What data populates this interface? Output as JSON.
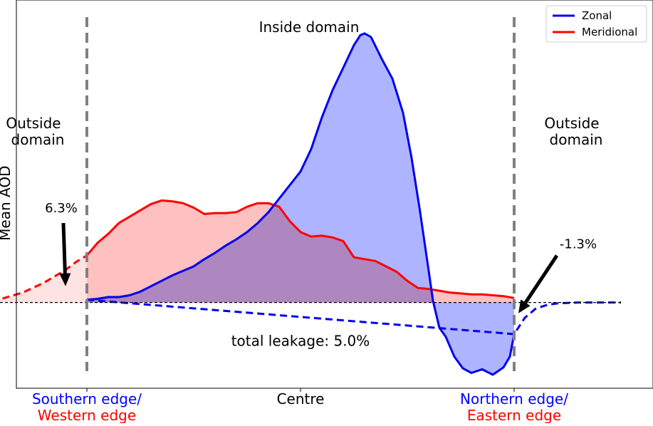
{
  "chart_data": {
    "type": "line",
    "ylabel": "Mean AOD",
    "x_ticks": [
      {
        "value": -1.0,
        "lines": [
          {
            "text": "Southern edge/",
            "color": "#0000ff"
          },
          {
            "text": "Western edge",
            "color": "#ff0000"
          }
        ]
      },
      {
        "value": 0.0,
        "lines": [
          {
            "text": "Centre",
            "color": "#000000"
          }
        ]
      },
      {
        "value": 1.0,
        "lines": [
          {
            "text": "Northern edge/",
            "color": "#0000ff"
          },
          {
            "text": "Eastern edge",
            "color": "#ff0000"
          }
        ]
      }
    ],
    "xlim": [
      -1.33,
      1.65
    ],
    "ylim": [
      -0.95,
      3.35
    ],
    "region_labels": {
      "inside": "Inside domain",
      "outside_left": [
        "Outside",
        "domain"
      ],
      "outside_right": [
        "Outside",
        "domain"
      ]
    },
    "domain_boundaries": [
      -1.0,
      1.0
    ],
    "zero_line": 0,
    "annotations": [
      {
        "text": "6.3%",
        "text_at": [
          -1.12,
          1.0
        ],
        "arrow_to": [
          -1.1,
          0.18
        ]
      },
      {
        "text": "-1.3%",
        "text_at": [
          1.3,
          0.6
        ],
        "arrow_to": [
          1.02,
          -0.12
        ]
      },
      {
        "text": "total leakage: 5.0%",
        "text_at": [
          0.0,
          -0.48
        ]
      }
    ],
    "legend": {
      "position": "top-right",
      "entries": [
        "Zonal",
        "Meridional"
      ]
    },
    "series": [
      {
        "name": "Zonal",
        "color": "#0000ee",
        "fill": "#aab0ff",
        "inside": [
          [
            -1.0,
            0.03
          ],
          [
            -0.95,
            0.04
          ],
          [
            -0.9,
            0.06
          ],
          [
            -0.85,
            0.06
          ],
          [
            -0.8,
            0.08
          ],
          [
            -0.75,
            0.12
          ],
          [
            -0.7,
            0.18
          ],
          [
            -0.65,
            0.24
          ],
          [
            -0.6,
            0.3
          ],
          [
            -0.55,
            0.35
          ],
          [
            -0.5,
            0.4
          ],
          [
            -0.45,
            0.48
          ],
          [
            -0.4,
            0.55
          ],
          [
            -0.35,
            0.63
          ],
          [
            -0.3,
            0.7
          ],
          [
            -0.25,
            0.78
          ],
          [
            -0.2,
            0.88
          ],
          [
            -0.15,
            1.0
          ],
          [
            -0.1,
            1.15
          ],
          [
            -0.05,
            1.3
          ],
          [
            0.0,
            1.45
          ],
          [
            0.05,
            1.7
          ],
          [
            0.1,
            2.05
          ],
          [
            0.15,
            2.35
          ],
          [
            0.2,
            2.6
          ],
          [
            0.25,
            2.85
          ],
          [
            0.28,
            2.96
          ],
          [
            0.3,
            2.98
          ],
          [
            0.33,
            2.94
          ],
          [
            0.38,
            2.7
          ],
          [
            0.43,
            2.48
          ],
          [
            0.48,
            2.1
          ],
          [
            0.52,
            1.6
          ],
          [
            0.56,
            1.0
          ],
          [
            0.6,
            0.35
          ],
          [
            0.62,
            0.02
          ],
          [
            0.65,
            -0.28
          ],
          [
            0.68,
            -0.38
          ],
          [
            0.72,
            -0.6
          ],
          [
            0.76,
            -0.73
          ],
          [
            0.8,
            -0.78
          ],
          [
            0.85,
            -0.74
          ],
          [
            0.9,
            -0.8
          ],
          [
            0.95,
            -0.72
          ],
          [
            0.98,
            -0.6
          ],
          [
            1.0,
            -0.35
          ]
        ],
        "outside": [
          [
            -1.0,
            0.03
          ],
          [
            1.0,
            -0.35
          ],
          [
            1.05,
            -0.17
          ],
          [
            1.1,
            -0.07
          ],
          [
            1.15,
            -0.03
          ],
          [
            1.2,
            -0.01
          ],
          [
            1.3,
            0.0
          ],
          [
            1.5,
            0.0
          ]
        ]
      },
      {
        "name": "Meridional",
        "color": "#ff0000",
        "fill": "#ffb0b0",
        "inside": [
          [
            -1.0,
            0.52
          ],
          [
            -0.95,
            0.66
          ],
          [
            -0.9,
            0.76
          ],
          [
            -0.85,
            0.88
          ],
          [
            -0.8,
            0.95
          ],
          [
            -0.75,
            1.02
          ],
          [
            -0.7,
            1.09
          ],
          [
            -0.65,
            1.13
          ],
          [
            -0.6,
            1.12
          ],
          [
            -0.55,
            1.1
          ],
          [
            -0.5,
            1.05
          ],
          [
            -0.45,
            0.98
          ],
          [
            -0.4,
            0.99
          ],
          [
            -0.35,
            0.99
          ],
          [
            -0.3,
            1.0
          ],
          [
            -0.25,
            1.06
          ],
          [
            -0.2,
            1.1
          ],
          [
            -0.15,
            1.1
          ],
          [
            -0.1,
            1.06
          ],
          [
            -0.05,
            0.9
          ],
          [
            0.0,
            0.78
          ],
          [
            0.05,
            0.73
          ],
          [
            0.1,
            0.74
          ],
          [
            0.15,
            0.72
          ],
          [
            0.2,
            0.68
          ],
          [
            0.25,
            0.5
          ],
          [
            0.3,
            0.48
          ],
          [
            0.35,
            0.46
          ],
          [
            0.4,
            0.4
          ],
          [
            0.45,
            0.34
          ],
          [
            0.5,
            0.24
          ],
          [
            0.55,
            0.16
          ],
          [
            0.6,
            0.15
          ],
          [
            0.65,
            0.13
          ],
          [
            0.7,
            0.11
          ],
          [
            0.75,
            0.1
          ],
          [
            0.8,
            0.09
          ],
          [
            0.85,
            0.09
          ],
          [
            0.9,
            0.08
          ],
          [
            0.95,
            0.07
          ],
          [
            1.0,
            0.05
          ]
        ],
        "outside": [
          [
            -1.5,
            0.0
          ],
          [
            -1.4,
            0.04
          ],
          [
            -1.3,
            0.11
          ],
          [
            -1.2,
            0.22
          ],
          [
            -1.1,
            0.36
          ],
          [
            -1.05,
            0.45
          ],
          [
            -1.0,
            0.52
          ]
        ]
      }
    ]
  }
}
